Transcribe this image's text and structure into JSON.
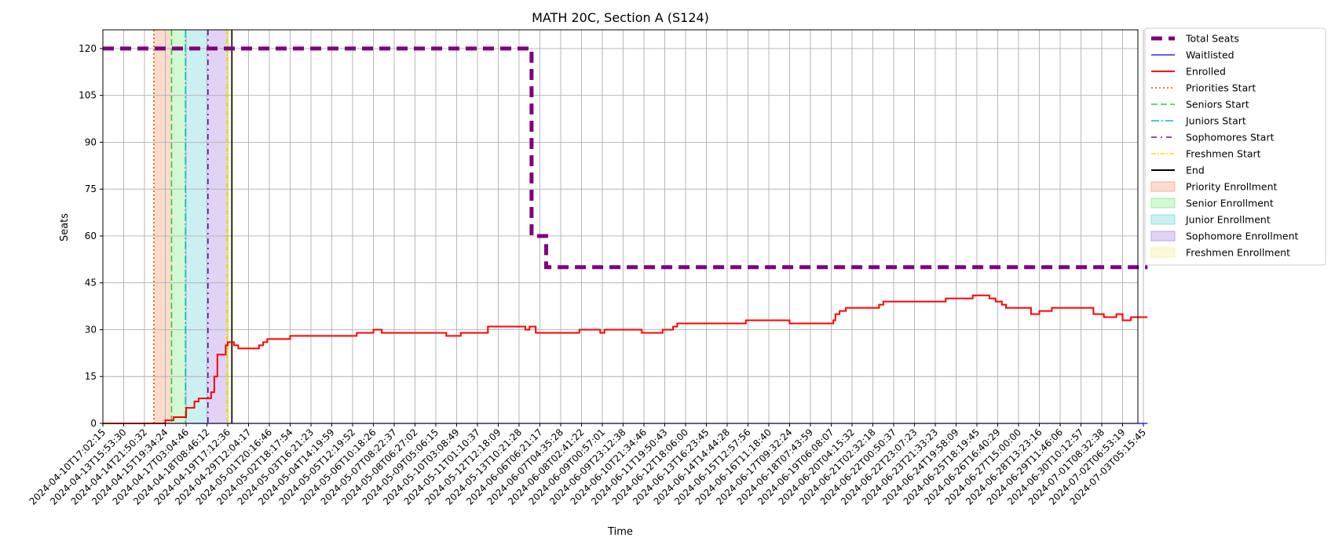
{
  "chart_data": {
    "type": "line",
    "title": "MATH 20C, Section A (S124)",
    "xlabel": "Time",
    "ylabel": "Seats",
    "ylim": [
      0,
      126
    ],
    "yticks": [
      0,
      15,
      30,
      45,
      60,
      75,
      90,
      105,
      120
    ],
    "x_tick_labels": [
      "2024-04-10T17:02:15",
      "2024-04-13T15:53:30",
      "2024-04-14T21:50:32",
      "2024-04-15T19:34:24",
      "2024-04-17T03:04:46",
      "2024-04-18T08:46:12",
      "2024-04-19T17:12:36",
      "2024-04-29T12:04:17",
      "2024-05-01T20:16:46",
      "2024-05-02T18:17:54",
      "2024-05-03T16:21:23",
      "2024-05-04T14:19:59",
      "2024-05-05T12:19:52",
      "2024-05-06T10:18:26",
      "2024-05-07T08:22:37",
      "2024-05-08T06:27:02",
      "2024-05-09T05:06:15",
      "2024-05-10T03:08:49",
      "2024-05-11T01:10:37",
      "2024-05-12T12:18:09",
      "2024-05-13T10:21:28",
      "2024-06-06T06:21:17",
      "2024-06-07T04:35:28",
      "2024-06-08T02:41:22",
      "2024-06-09T00:57:01",
      "2024-06-09T23:12:38",
      "2024-06-10T21:34:46",
      "2024-06-11T19:50:43",
      "2024-06-12T18:06:00",
      "2024-06-13T16:23:45",
      "2024-06-14T14:44:28",
      "2024-06-15T12:57:56",
      "2024-06-16T11:18:40",
      "2024-06-17T09:32:24",
      "2024-06-18T07:43:59",
      "2024-06-19T06:08:07",
      "2024-06-20T04:15:32",
      "2024-06-21T02:32:18",
      "2024-06-22T00:50:37",
      "2024-06-22T23:07:23",
      "2024-06-23T21:33:23",
      "2024-06-24T19:58:09",
      "2024-06-25T18:19:45",
      "2024-06-26T16:40:29",
      "2024-06-27T15:00:00",
      "2024-06-28T13:23:16",
      "2024-06-29T11:46:06",
      "2024-06-30T10:12:57",
      "2024-07-01T08:32:38",
      "2024-07-02T06:53:19",
      "2024-07-03T05:15:45"
    ],
    "x_range": [
      0,
      50.2
    ],
    "x_units": "tick index",
    "grid": true,
    "legend_position": "outside-right",
    "series": [
      {
        "name": "Total Seats",
        "color": "#800080",
        "style": "dashed-thick",
        "points": [
          [
            0,
            120
          ],
          [
            20.6,
            120
          ],
          [
            20.6,
            60
          ],
          [
            21.3,
            60
          ],
          [
            21.3,
            50
          ],
          [
            50.2,
            50
          ]
        ]
      },
      {
        "name": "Waitlisted",
        "color": "#0000ff",
        "style": "solid-thin",
        "points": [
          [
            0,
            0
          ],
          [
            50.2,
            0
          ]
        ]
      },
      {
        "name": "Enrolled",
        "color": "#ff0000",
        "style": "solid",
        "points": [
          [
            0,
            0
          ],
          [
            3.0,
            0
          ],
          [
            3.0,
            1
          ],
          [
            3.4,
            1
          ],
          [
            3.4,
            2
          ],
          [
            4.0,
            2
          ],
          [
            4.0,
            5
          ],
          [
            4.4,
            5
          ],
          [
            4.4,
            7
          ],
          [
            4.6,
            7
          ],
          [
            4.6,
            8
          ],
          [
            5.2,
            8
          ],
          [
            5.2,
            10
          ],
          [
            5.35,
            10
          ],
          [
            5.35,
            15
          ],
          [
            5.5,
            15
          ],
          [
            5.5,
            22
          ],
          [
            5.9,
            22
          ],
          [
            5.9,
            25
          ],
          [
            6.0,
            25
          ],
          [
            6.0,
            26
          ],
          [
            6.3,
            26
          ],
          [
            6.3,
            25
          ],
          [
            6.5,
            25
          ],
          [
            6.5,
            24
          ],
          [
            7.5,
            24
          ],
          [
            7.5,
            25
          ],
          [
            7.7,
            25
          ],
          [
            7.7,
            26
          ],
          [
            7.9,
            26
          ],
          [
            7.9,
            27
          ],
          [
            9.0,
            27
          ],
          [
            9.0,
            28
          ],
          [
            12.2,
            28
          ],
          [
            12.2,
            29
          ],
          [
            13.0,
            29
          ],
          [
            13.0,
            30
          ],
          [
            13.4,
            30
          ],
          [
            13.4,
            29
          ],
          [
            16.5,
            29
          ],
          [
            16.5,
            28
          ],
          [
            17.2,
            28
          ],
          [
            17.2,
            29
          ],
          [
            18.5,
            29
          ],
          [
            18.5,
            31
          ],
          [
            20.3,
            31
          ],
          [
            20.3,
            30
          ],
          [
            20.5,
            30
          ],
          [
            20.5,
            31
          ],
          [
            20.8,
            31
          ],
          [
            20.8,
            29
          ],
          [
            22.9,
            29
          ],
          [
            22.9,
            30
          ],
          [
            23.9,
            30
          ],
          [
            23.9,
            29
          ],
          [
            24.1,
            29
          ],
          [
            24.1,
            30
          ],
          [
            25.9,
            30
          ],
          [
            25.9,
            29
          ],
          [
            26.9,
            29
          ],
          [
            26.9,
            30
          ],
          [
            27.4,
            30
          ],
          [
            27.4,
            31
          ],
          [
            27.6,
            31
          ],
          [
            27.6,
            32
          ],
          [
            30.9,
            32
          ],
          [
            30.9,
            33
          ],
          [
            33.0,
            33
          ],
          [
            33.0,
            32
          ],
          [
            35.1,
            32
          ],
          [
            35.1,
            33
          ],
          [
            35.2,
            33
          ],
          [
            35.2,
            35
          ],
          [
            35.4,
            35
          ],
          [
            35.4,
            36
          ],
          [
            35.7,
            36
          ],
          [
            35.7,
            37
          ],
          [
            37.3,
            37
          ],
          [
            37.3,
            38
          ],
          [
            37.5,
            38
          ],
          [
            37.5,
            39
          ],
          [
            40.5,
            39
          ],
          [
            40.5,
            40
          ],
          [
            41.8,
            40
          ],
          [
            41.8,
            41
          ],
          [
            42.6,
            41
          ],
          [
            42.6,
            40
          ],
          [
            42.9,
            40
          ],
          [
            42.9,
            39
          ],
          [
            43.2,
            39
          ],
          [
            43.2,
            38
          ],
          [
            43.4,
            38
          ],
          [
            43.4,
            37
          ],
          [
            44.6,
            37
          ],
          [
            44.6,
            35
          ],
          [
            45.0,
            35
          ],
          [
            45.0,
            36
          ],
          [
            45.6,
            36
          ],
          [
            45.6,
            37
          ],
          [
            47.6,
            37
          ],
          [
            47.6,
            35
          ],
          [
            48.1,
            35
          ],
          [
            48.1,
            34
          ],
          [
            48.7,
            34
          ],
          [
            48.7,
            35
          ],
          [
            49.0,
            35
          ],
          [
            49.0,
            33
          ],
          [
            49.4,
            33
          ],
          [
            49.4,
            34
          ],
          [
            50.2,
            34
          ]
        ]
      }
    ],
    "markers": [
      {
        "name": "Priorities Start",
        "x": 2.45,
        "color": "#ff4500",
        "style": "dotted"
      },
      {
        "name": "Seniors Start",
        "x": 3.3,
        "color": "#32cd32",
        "style": "dashed"
      },
      {
        "name": "Juniors Start",
        "x": 3.97,
        "color": "#00bfc8",
        "style": "dashdot"
      },
      {
        "name": "Sophomores Start",
        "x": 5.05,
        "color": "#6a0dad",
        "style": "dashdot-sparse"
      },
      {
        "name": "Freshmen Start",
        "x": 5.95,
        "color": "#ffd700",
        "style": "dashdot-fine"
      },
      {
        "name": "End",
        "x": 6.2,
        "color": "#000000",
        "style": "solid"
      }
    ],
    "bands": [
      {
        "name": "Priority Enrollment",
        "from": 2.45,
        "to": 3.3,
        "color": "#f4a582"
      },
      {
        "name": "Senior Enrollment",
        "from": 3.3,
        "to": 3.97,
        "color": "#90ee90"
      },
      {
        "name": "Junior Enrollment",
        "from": 3.97,
        "to": 5.05,
        "color": "#7fd7dd"
      },
      {
        "name": "Sophomore Enrollment",
        "from": 5.05,
        "to": 5.95,
        "color": "#b590e6"
      },
      {
        "name": "Freshmen Enrollment",
        "from": 5.95,
        "to": 6.2,
        "color": "#f5f0a0"
      }
    ],
    "legend": [
      {
        "label": "Total Seats",
        "kind": "line",
        "color": "#800080",
        "style": "dashed-thick"
      },
      {
        "label": "Waitlisted",
        "kind": "line",
        "color": "#0000ff",
        "style": "solid-thin"
      },
      {
        "label": "Enrolled",
        "kind": "line",
        "color": "#ff0000",
        "style": "solid"
      },
      {
        "label": "Priorities Start",
        "kind": "line",
        "color": "#ff4500",
        "style": "dotted"
      },
      {
        "label": "Seniors Start",
        "kind": "line",
        "color": "#32cd32",
        "style": "dashed"
      },
      {
        "label": "Juniors Start",
        "kind": "line",
        "color": "#00bfc8",
        "style": "dashdot"
      },
      {
        "label": "Sophomores Start",
        "kind": "line",
        "color": "#6a0dad",
        "style": "dashdot-sparse"
      },
      {
        "label": "Freshmen Start",
        "kind": "line",
        "color": "#ffd700",
        "style": "dashdot-fine"
      },
      {
        "label": "End",
        "kind": "line",
        "color": "#000000",
        "style": "solid"
      },
      {
        "label": "Priority Enrollment",
        "kind": "patch",
        "color": "#f4a582"
      },
      {
        "label": "Senior Enrollment",
        "kind": "patch",
        "color": "#90ee90"
      },
      {
        "label": "Junior Enrollment",
        "kind": "patch",
        "color": "#7fd7dd"
      },
      {
        "label": "Sophomore Enrollment",
        "kind": "patch",
        "color": "#b590e6"
      },
      {
        "label": "Freshmen Enrollment",
        "kind": "patch",
        "color": "#f5f0a0"
      }
    ]
  }
}
